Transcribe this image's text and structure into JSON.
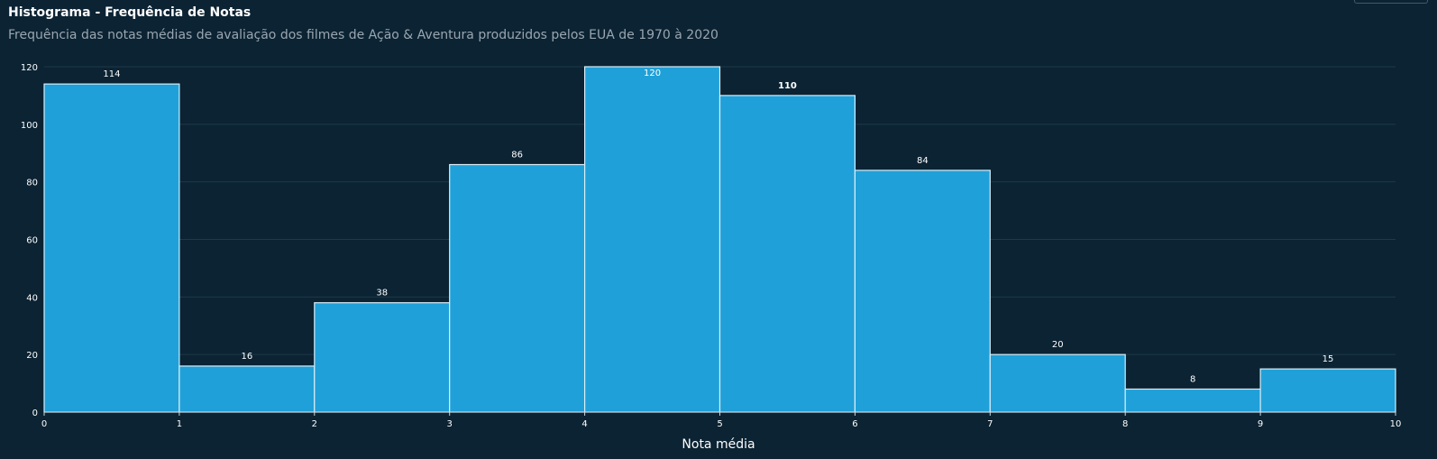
{
  "title": "Histograma - Frequência de Notas",
  "subtitle": "Frequência das notas médias de avaliação dos filmes de Ação & Aventura produzidos pelos EUA de 1970 à 2020",
  "colors": {
    "background": "#0b2333",
    "bar_fill": "#20a0d8",
    "bar_stroke": "#d8eef8",
    "grid": "#1f3a4a",
    "text": "#ffffff",
    "subtitle": "#9aa6b0"
  },
  "chart_data": {
    "type": "bar",
    "subtype": "histogram",
    "bins": [
      [
        0,
        1
      ],
      [
        1,
        2
      ],
      [
        2,
        3
      ],
      [
        3,
        4
      ],
      [
        4,
        5
      ],
      [
        5,
        6
      ],
      [
        6,
        7
      ],
      [
        7,
        8
      ],
      [
        8,
        9
      ],
      [
        9,
        10
      ]
    ],
    "values": [
      114,
      16,
      38,
      86,
      120,
      110,
      84,
      20,
      8,
      15
    ],
    "xlabel": "Nota média",
    "ylabel": "",
    "xlim": [
      0,
      10
    ],
    "ylim": [
      0,
      120
    ],
    "x_ticks": [
      0,
      1,
      2,
      3,
      4,
      5,
      6,
      7,
      8,
      9,
      10
    ],
    "y_ticks": [
      0,
      20,
      40,
      60,
      80,
      100,
      120
    ],
    "grid": true,
    "data_labels": true
  }
}
